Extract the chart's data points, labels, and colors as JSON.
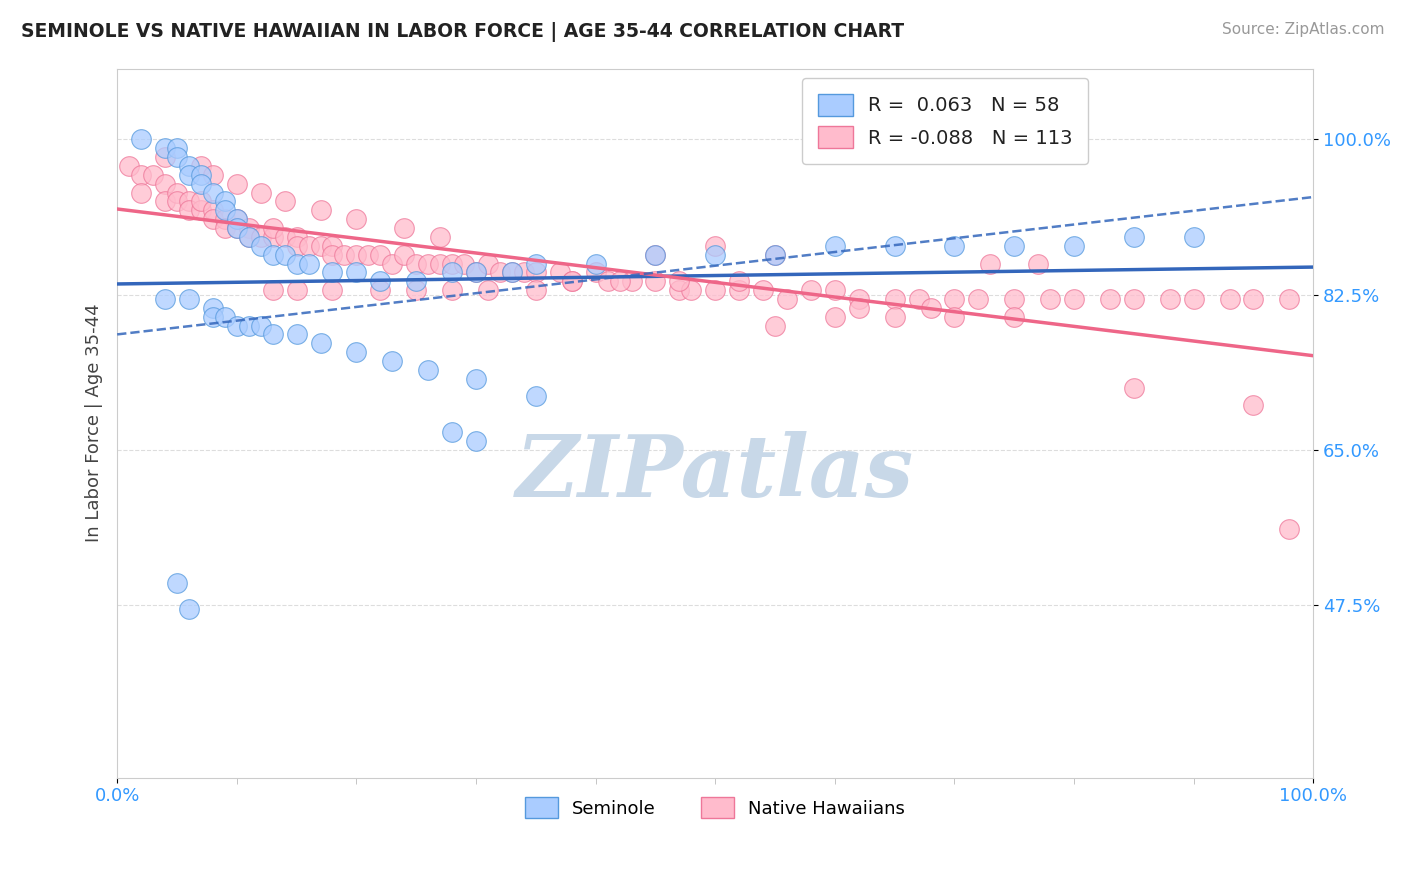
{
  "title": "SEMINOLE VS NATIVE HAWAIIAN IN LABOR FORCE | AGE 35-44 CORRELATION CHART",
  "source": "Source: ZipAtlas.com",
  "ylabel": "In Labor Force | Age 35-44",
  "legend_label1": "Seminole",
  "legend_label2": "Native Hawaiians",
  "color_seminole": "#aaccff",
  "color_native": "#ffbbcc",
  "color_edge_seminole": "#5599dd",
  "color_edge_native": "#ee7799",
  "color_trend_seminole": "#3366bb",
  "color_trend_native": "#ee6688",
  "xmin": 0.0,
  "xmax": 1.0,
  "ymin": 0.28,
  "ymax": 1.08,
  "yticks": [
    0.475,
    0.65,
    0.825,
    1.0
  ],
  "ytick_labels": [
    "47.5%",
    "65.0%",
    "82.5%",
    "100.0%"
  ],
  "xtick_labels": [
    "0.0%",
    "100.0%"
  ],
  "xticks": [
    0.0,
    1.0
  ],
  "watermark": "ZIPatlas",
  "watermark_color": "#c8d8e8",
  "grid_color": "#dddddd",
  "seminole_x": [
    0.02,
    0.04,
    0.05,
    0.05,
    0.06,
    0.06,
    0.07,
    0.07,
    0.08,
    0.09,
    0.09,
    0.1,
    0.1,
    0.11,
    0.12,
    0.13,
    0.14,
    0.15,
    0.16,
    0.18,
    0.2,
    0.22,
    0.25,
    0.28,
    0.3,
    0.33,
    0.35,
    0.4,
    0.45,
    0.5,
    0.55,
    0.6,
    0.65,
    0.7,
    0.75,
    0.8,
    0.85,
    0.9,
    0.04,
    0.06,
    0.08,
    0.08,
    0.09,
    0.1,
    0.11,
    0.12,
    0.13,
    0.15,
    0.17,
    0.2,
    0.23,
    0.26,
    0.3,
    0.35,
    0.28,
    0.3,
    0.05,
    0.06
  ],
  "seminole_y": [
    1.0,
    0.99,
    0.99,
    0.98,
    0.97,
    0.96,
    0.96,
    0.95,
    0.94,
    0.93,
    0.92,
    0.91,
    0.9,
    0.89,
    0.88,
    0.87,
    0.87,
    0.86,
    0.86,
    0.85,
    0.85,
    0.84,
    0.84,
    0.85,
    0.85,
    0.85,
    0.86,
    0.86,
    0.87,
    0.87,
    0.87,
    0.88,
    0.88,
    0.88,
    0.88,
    0.88,
    0.89,
    0.89,
    0.82,
    0.82,
    0.81,
    0.8,
    0.8,
    0.79,
    0.79,
    0.79,
    0.78,
    0.78,
    0.77,
    0.76,
    0.75,
    0.74,
    0.73,
    0.71,
    0.67,
    0.66,
    0.5,
    0.47
  ],
  "native_x": [
    0.01,
    0.02,
    0.02,
    0.03,
    0.04,
    0.04,
    0.05,
    0.05,
    0.06,
    0.06,
    0.07,
    0.07,
    0.08,
    0.08,
    0.09,
    0.09,
    0.1,
    0.1,
    0.11,
    0.11,
    0.12,
    0.13,
    0.13,
    0.14,
    0.15,
    0.15,
    0.16,
    0.17,
    0.18,
    0.18,
    0.19,
    0.2,
    0.21,
    0.22,
    0.23,
    0.24,
    0.25,
    0.26,
    0.27,
    0.28,
    0.29,
    0.3,
    0.31,
    0.32,
    0.33,
    0.34,
    0.35,
    0.37,
    0.38,
    0.4,
    0.41,
    0.43,
    0.45,
    0.47,
    0.48,
    0.5,
    0.52,
    0.54,
    0.56,
    0.58,
    0.6,
    0.62,
    0.65,
    0.67,
    0.7,
    0.72,
    0.75,
    0.78,
    0.8,
    0.83,
    0.85,
    0.88,
    0.9,
    0.93,
    0.95,
    0.98,
    0.04,
    0.07,
    0.08,
    0.1,
    0.12,
    0.14,
    0.17,
    0.2,
    0.24,
    0.27,
    0.13,
    0.15,
    0.18,
    0.22,
    0.25,
    0.28,
    0.31,
    0.35,
    0.55,
    0.6,
    0.65,
    0.7,
    0.75,
    0.38,
    0.42,
    0.47,
    0.52,
    0.85,
    0.95,
    0.98,
    0.62,
    0.68,
    0.45,
    0.5,
    0.55,
    0.73,
    0.77
  ],
  "native_y": [
    0.97,
    0.96,
    0.94,
    0.96,
    0.95,
    0.93,
    0.94,
    0.93,
    0.93,
    0.92,
    0.92,
    0.93,
    0.92,
    0.91,
    0.91,
    0.9,
    0.91,
    0.9,
    0.9,
    0.89,
    0.89,
    0.89,
    0.9,
    0.89,
    0.89,
    0.88,
    0.88,
    0.88,
    0.88,
    0.87,
    0.87,
    0.87,
    0.87,
    0.87,
    0.86,
    0.87,
    0.86,
    0.86,
    0.86,
    0.86,
    0.86,
    0.85,
    0.86,
    0.85,
    0.85,
    0.85,
    0.85,
    0.85,
    0.84,
    0.85,
    0.84,
    0.84,
    0.84,
    0.83,
    0.83,
    0.83,
    0.83,
    0.83,
    0.82,
    0.83,
    0.83,
    0.82,
    0.82,
    0.82,
    0.82,
    0.82,
    0.82,
    0.82,
    0.82,
    0.82,
    0.82,
    0.82,
    0.82,
    0.82,
    0.82,
    0.82,
    0.98,
    0.97,
    0.96,
    0.95,
    0.94,
    0.93,
    0.92,
    0.91,
    0.9,
    0.89,
    0.83,
    0.83,
    0.83,
    0.83,
    0.83,
    0.83,
    0.83,
    0.83,
    0.79,
    0.8,
    0.8,
    0.8,
    0.8,
    0.84,
    0.84,
    0.84,
    0.84,
    0.72,
    0.7,
    0.56,
    0.81,
    0.81,
    0.87,
    0.88,
    0.87,
    0.86,
    0.86
  ]
}
